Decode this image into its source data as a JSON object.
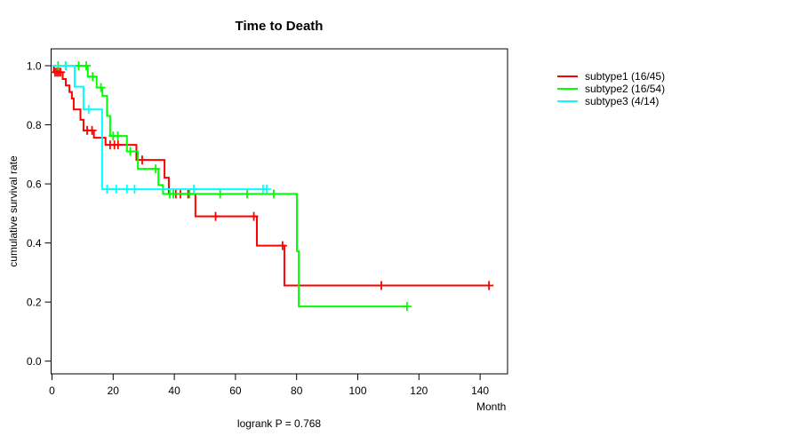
{
  "chart_data": {
    "type": "line",
    "variant": "kaplan-meier-step",
    "title": "Time to Death",
    "xlabel": "Month",
    "ylabel": "cumulative survival rate",
    "footnote": "logrank P = 0.768",
    "xlim": [
      0,
      149
    ],
    "ylim": [
      0.0,
      1.0
    ],
    "xticks": [
      0,
      20,
      40,
      60,
      80,
      100,
      120,
      140
    ],
    "yticks": [
      0.0,
      0.2,
      0.4,
      0.6,
      0.8,
      1.0
    ],
    "grid": false,
    "legend_position": "right-outside",
    "series": [
      {
        "name": "subtype1",
        "legend_label": "subtype1 (16/45)",
        "color": "#ff0000",
        "events": 16,
        "n": 45,
        "end_month": 142.9,
        "steps": [
          [
            0,
            1.0
          ],
          [
            0.6,
            0.978
          ],
          [
            3.5,
            0.955
          ],
          [
            4.5,
            0.933
          ],
          [
            5.7,
            0.911
          ],
          [
            6.5,
            0.889
          ],
          [
            7.1,
            0.852
          ],
          [
            9.3,
            0.817
          ],
          [
            10.3,
            0.781
          ],
          [
            13.7,
            0.756
          ],
          [
            17.5,
            0.732
          ],
          [
            27.6,
            0.681
          ],
          [
            36.8,
            0.621
          ],
          [
            38.2,
            0.566
          ],
          [
            46.9,
            0.49
          ],
          [
            67.0,
            0.391
          ],
          [
            76.0,
            0.256
          ]
        ],
        "censor_marks": [
          [
            1.0,
            0.978
          ],
          [
            1.6,
            0.978
          ],
          [
            2.2,
            0.978
          ],
          [
            2.8,
            0.978
          ],
          [
            11.5,
            0.781
          ],
          [
            13.1,
            0.781
          ],
          [
            19.0,
            0.732
          ],
          [
            20.4,
            0.732
          ],
          [
            21.6,
            0.732
          ],
          [
            29.5,
            0.681
          ],
          [
            40.5,
            0.566
          ],
          [
            42.0,
            0.566
          ],
          [
            44.5,
            0.566
          ],
          [
            53.5,
            0.49
          ],
          [
            66.0,
            0.49
          ],
          [
            75.4,
            0.391
          ],
          [
            107.7,
            0.256
          ],
          [
            142.9,
            0.256
          ]
        ]
      },
      {
        "name": "subtype2",
        "legend_label": "subtype2 (16/54)",
        "color": "#00ff00",
        "events": 16,
        "n": 54,
        "end_month": 116.1,
        "steps": [
          [
            0,
            1.0
          ],
          [
            11.7,
            0.963
          ],
          [
            14.6,
            0.926
          ],
          [
            16.5,
            0.898
          ],
          [
            18.0,
            0.83
          ],
          [
            19.0,
            0.762
          ],
          [
            24.5,
            0.71
          ],
          [
            28.1,
            0.651
          ],
          [
            34.8,
            0.596
          ],
          [
            36.3,
            0.566
          ],
          [
            80.1,
            0.372
          ],
          [
            80.7,
            0.185
          ]
        ],
        "censor_marks": [
          [
            2.0,
            1.0
          ],
          [
            4.5,
            1.0
          ],
          [
            8.7,
            1.0
          ],
          [
            11.2,
            1.0
          ],
          [
            13.3,
            0.963
          ],
          [
            16.0,
            0.926
          ],
          [
            20.0,
            0.762
          ],
          [
            21.5,
            0.762
          ],
          [
            25.6,
            0.71
          ],
          [
            33.9,
            0.651
          ],
          [
            38.5,
            0.566
          ],
          [
            39.7,
            0.566
          ],
          [
            45.0,
            0.566
          ],
          [
            55.0,
            0.566
          ],
          [
            63.8,
            0.566
          ],
          [
            72.5,
            0.566
          ],
          [
            116.1,
            0.185
          ]
        ]
      },
      {
        "name": "subtype3",
        "legend_label": "subtype3 (4/14)",
        "color": "#00ffff",
        "events": 4,
        "n": 14,
        "end_month": 70.2,
        "steps": [
          [
            0,
            1.0
          ],
          [
            7.4,
            0.929
          ],
          [
            10.3,
            0.852
          ],
          [
            16.4,
            0.582
          ]
        ],
        "censor_marks": [
          [
            4.4,
            1.0
          ],
          [
            12.0,
            0.852
          ],
          [
            18.0,
            0.582
          ],
          [
            21.0,
            0.582
          ],
          [
            24.5,
            0.582
          ],
          [
            27.0,
            0.582
          ],
          [
            46.4,
            0.582
          ],
          [
            69.0,
            0.582
          ],
          [
            70.2,
            0.582
          ]
        ]
      }
    ]
  }
}
